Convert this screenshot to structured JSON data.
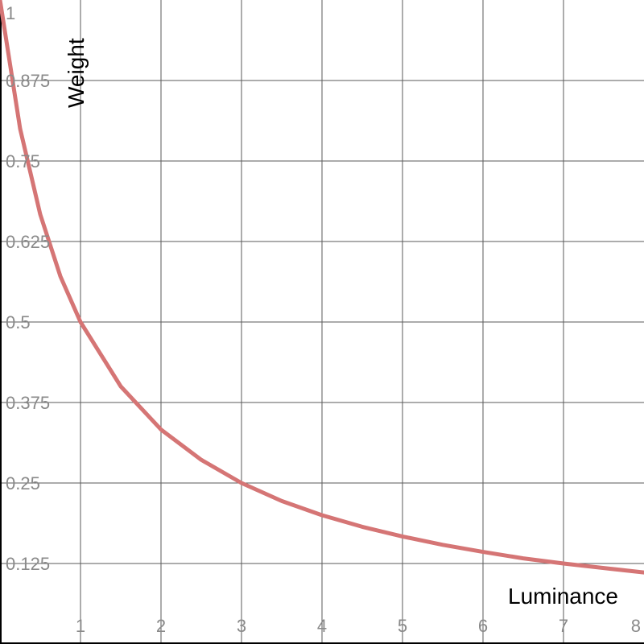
{
  "chart_data": {
    "type": "line",
    "xlabel": "Luminance",
    "ylabel": "Weight",
    "xlim": [
      0,
      8
    ],
    "ylim": [
      0,
      1
    ],
    "grid": true,
    "x_ticks": [
      {
        "value": 1,
        "label": "1"
      },
      {
        "value": 2,
        "label": "2"
      },
      {
        "value": 3,
        "label": "3"
      },
      {
        "value": 4,
        "label": "4"
      },
      {
        "value": 5,
        "label": "5"
      },
      {
        "value": 6,
        "label": "6"
      },
      {
        "value": 7,
        "label": "7"
      },
      {
        "value": 8,
        "label": "8"
      }
    ],
    "y_ticks": [
      {
        "value": 0.125,
        "label": "0.125"
      },
      {
        "value": 0.25,
        "label": "0.25"
      },
      {
        "value": 0.375,
        "label": "0.375"
      },
      {
        "value": 0.5,
        "label": "0.5"
      },
      {
        "value": 0.625,
        "label": "0.625"
      },
      {
        "value": 0.75,
        "label": "0.75"
      },
      {
        "value": 0.875,
        "label": "0.875"
      },
      {
        "value": 1,
        "label": "1"
      }
    ],
    "series": [
      {
        "color": "#d57575",
        "points": [
          {
            "x": 0,
            "y": 1.0
          },
          {
            "x": 0.25,
            "y": 0.8
          },
          {
            "x": 0.5,
            "y": 0.667
          },
          {
            "x": 0.75,
            "y": 0.571
          },
          {
            "x": 1,
            "y": 0.5
          },
          {
            "x": 1.5,
            "y": 0.4
          },
          {
            "x": 2,
            "y": 0.333
          },
          {
            "x": 2.5,
            "y": 0.286
          },
          {
            "x": 3,
            "y": 0.25
          },
          {
            "x": 3.5,
            "y": 0.222
          },
          {
            "x": 4,
            "y": 0.2
          },
          {
            "x": 4.5,
            "y": 0.182
          },
          {
            "x": 5,
            "y": 0.167
          },
          {
            "x": 5.5,
            "y": 0.154
          },
          {
            "x": 6,
            "y": 0.143
          },
          {
            "x": 6.5,
            "y": 0.133
          },
          {
            "x": 7,
            "y": 0.125
          },
          {
            "x": 7.5,
            "y": 0.118
          },
          {
            "x": 8,
            "y": 0.111
          }
        ]
      }
    ]
  }
}
